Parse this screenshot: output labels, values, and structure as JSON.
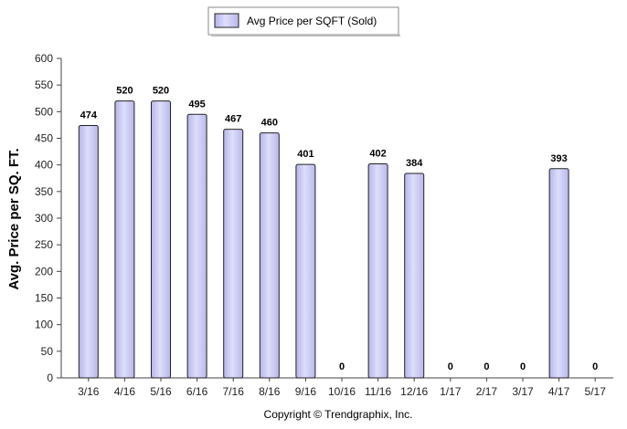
{
  "chart_data": {
    "type": "bar",
    "categories": [
      "3/16",
      "4/16",
      "5/16",
      "6/16",
      "7/16",
      "8/16",
      "9/16",
      "10/16",
      "11/16",
      "12/16",
      "1/17",
      "2/17",
      "3/17",
      "4/17",
      "5/17"
    ],
    "series": [
      {
        "name": "Avg Price per SQFT (Sold)",
        "values": [
          474,
          520,
          520,
          495,
          467,
          460,
          401,
          0,
          402,
          384,
          0,
          0,
          0,
          393,
          0
        ]
      }
    ],
    "data_labels": [
      "474",
      "520",
      "520",
      "495",
      "467",
      "460",
      "401",
      "0",
      "402",
      "384",
      "0",
      "0",
      "0",
      "393",
      "0"
    ],
    "ylabel": "Avg. Price per SQ. FT.",
    "xlabel": "",
    "ylim": [
      0,
      600
    ],
    "yticks": [
      0,
      50,
      100,
      150,
      200,
      250,
      300,
      350,
      400,
      450,
      500,
      550,
      600
    ],
    "grid": false,
    "legend_position": "top-center",
    "bar_color": "#c8c8f4",
    "bar_outline": "#222222"
  },
  "footer": {
    "copyright": "Copyright © Trendgraphix, Inc."
  }
}
